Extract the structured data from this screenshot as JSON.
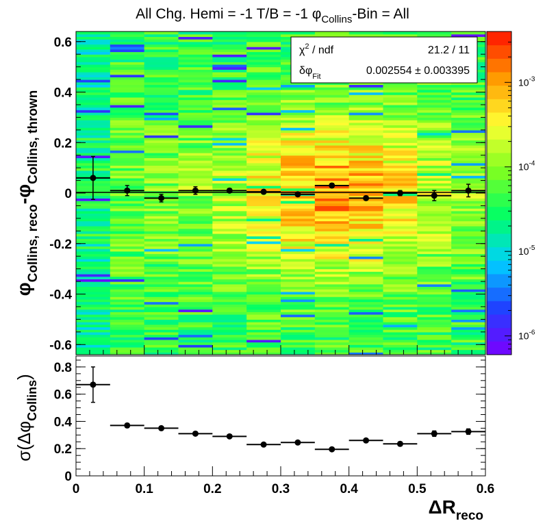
{
  "title": {
    "prefix": "All Chg. Hemi = -1 T/B = -1 ",
    "phi": "φ",
    "sub": "Collins",
    "suffix": "-Bin = All"
  },
  "colors": {
    "stops": [
      "#7b00ff",
      "#2040ff",
      "#00d0ff",
      "#00ff66",
      "#80ff20",
      "#ffff33",
      "#ff9900",
      "#ff1100"
    ]
  },
  "stats_box": {
    "chi2_label": "χ",
    "chi2_sup": "2",
    "chi2_rest": " / ndf",
    "chi2_value": "21.2 / 11",
    "fit_label": "δφ",
    "fit_sub": "Fit",
    "fit_value": "0.002554 ± 0.003395"
  },
  "chart_data": [
    {
      "type": "heatmap",
      "xlim": [
        0,
        0.6
      ],
      "ylim": [
        -0.64,
        0.64
      ],
      "x_ticks": [
        0,
        0.1,
        0.2,
        0.3,
        0.4,
        0.5,
        0.6
      ],
      "y_ticks": [
        "-0.6",
        "-0.4",
        "-0.2",
        "0",
        "0.2",
        "0.4",
        "0.6"
      ],
      "ylabel": {
        "phi": "φ",
        "sub_reco": "Collins, reco",
        "minus": "-",
        "phi2": "φ",
        "sub_thrown": "Collins, thrown"
      },
      "colorbar": {
        "scale": "log",
        "range": [
          6e-07,
          0.004
        ],
        "ticks": [
          {
            "base": "10",
            "exp": "-3",
            "value": 0.001
          },
          {
            "base": "10",
            "exp": "-4",
            "value": 0.0001
          },
          {
            "base": "10",
            "exp": "-5",
            "value": 1e-05
          },
          {
            "base": "10",
            "exp": "-6",
            "value": 1e-06
          }
        ]
      },
      "profile": {
        "x": [
          0.025,
          0.075,
          0.125,
          0.175,
          0.225,
          0.275,
          0.325,
          0.375,
          0.425,
          0.475,
          0.525,
          0.575
        ],
        "y": [
          0.06,
          0.01,
          -0.02,
          0.01,
          0.01,
          0.005,
          -0.005,
          0.03,
          -0.02,
          0.0,
          -0.01,
          0.01
        ],
        "yerr": [
          0.085,
          0.02,
          0.015,
          0.015,
          0.008,
          0.008,
          0.008,
          0.008,
          0.008,
          0.01,
          0.02,
          0.025
        ]
      },
      "fit_line": {
        "y": 0.002554
      }
    },
    {
      "type": "scatter",
      "xlim": [
        0,
        0.6
      ],
      "ylim": [
        0,
        0.88
      ],
      "x_ticks": [
        "0",
        "0.1",
        "0.2",
        "0.3",
        "0.4",
        "0.5",
        "0.6"
      ],
      "y_ticks": [
        "0",
        "0.2",
        "0.4",
        "0.6",
        "0.8"
      ],
      "xlabel": {
        "main": "ΔR",
        "sub": "reco"
      },
      "ylabel": {
        "main": "σ(Δφ",
        "sub": "Collins",
        "close": ")"
      },
      "x": [
        0.025,
        0.075,
        0.125,
        0.175,
        0.225,
        0.275,
        0.325,
        0.375,
        0.425,
        0.475,
        0.525,
        0.575
      ],
      "y": [
        0.67,
        0.37,
        0.35,
        0.31,
        0.29,
        0.23,
        0.245,
        0.195,
        0.26,
        0.235,
        0.31,
        0.325
      ],
      "yerr": [
        0.13,
        0.015,
        0.01,
        0.01,
        0.01,
        0.01,
        0.01,
        0.01,
        0.01,
        0.015,
        0.02,
        0.02
      ]
    }
  ]
}
